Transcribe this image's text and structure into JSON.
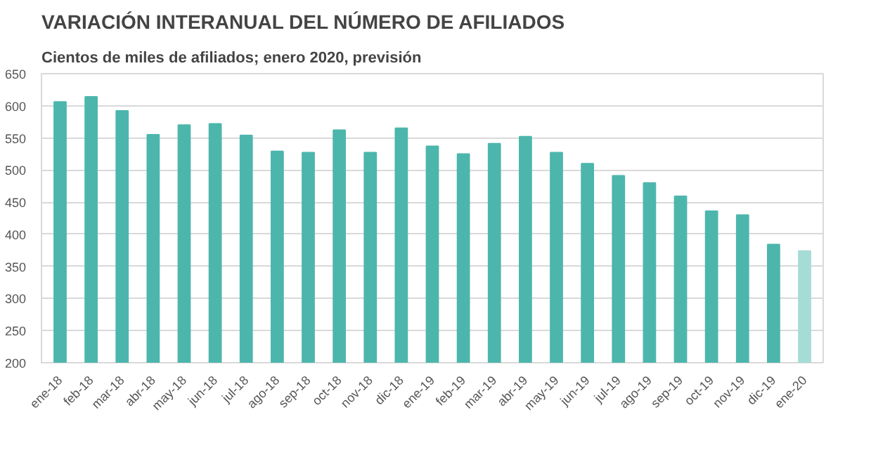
{
  "chart_data": {
    "type": "bar",
    "title": "VARIACIÓN INTERANUAL DEL NÚMERO DE AFILIADOS",
    "subtitle": "Cientos de miles de afiliados; enero 2020, previsión",
    "categories": [
      "ene-18",
      "feb-18",
      "mar-18",
      "abr-18",
      "may-18",
      "jun-18",
      "jul-18",
      "ago-18",
      "sep-18",
      "oct-18",
      "nov-18",
      "dic-18",
      "ene-19",
      "feb-19",
      "mar-19",
      "abr-19",
      "may-19",
      "jun-19",
      "jul-19",
      "ago-19",
      "sep-19",
      "oct-19",
      "nov-19",
      "dic-19",
      "ene-20"
    ],
    "values": [
      606,
      614,
      592,
      555,
      570,
      572,
      554,
      529,
      527,
      562,
      527,
      565,
      537,
      525,
      541,
      552,
      527,
      510,
      491,
      480,
      459,
      436,
      430,
      384,
      374
    ],
    "colors": [
      "#4db6ac",
      "#4db6ac",
      "#4db6ac",
      "#4db6ac",
      "#4db6ac",
      "#4db6ac",
      "#4db6ac",
      "#4db6ac",
      "#4db6ac",
      "#4db6ac",
      "#4db6ac",
      "#4db6ac",
      "#4db6ac",
      "#4db6ac",
      "#4db6ac",
      "#4db6ac",
      "#4db6ac",
      "#4db6ac",
      "#4db6ac",
      "#4db6ac",
      "#4db6ac",
      "#4db6ac",
      "#4db6ac",
      "#4db6ac",
      "#a6dcd6"
    ],
    "ylim": [
      200,
      650
    ],
    "yticks": [
      200,
      250,
      300,
      350,
      400,
      450,
      500,
      550,
      600,
      650
    ],
    "grid": "y"
  }
}
